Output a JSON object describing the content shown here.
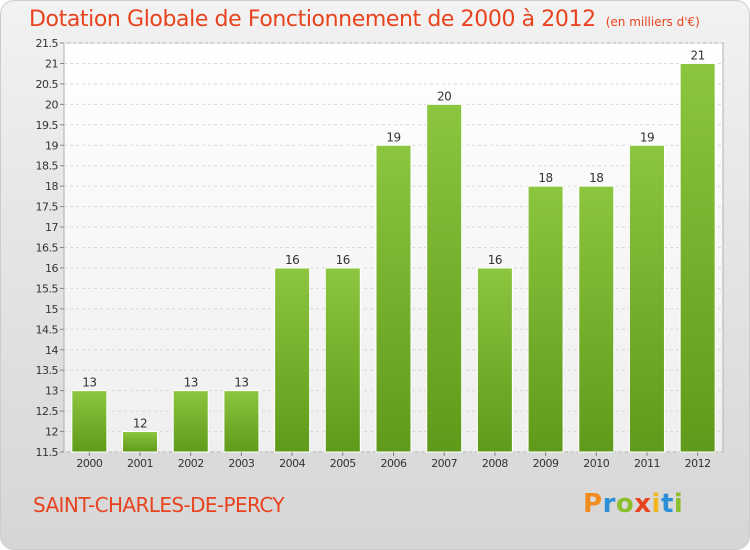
{
  "header": {
    "title": "Dotation Globale de Fonctionnement de 2000 à 2012",
    "unit": "(en milliers d'€)"
  },
  "footer": {
    "commune": "SAINT-CHARLES-DE-PERCY",
    "logo_letters": [
      "P",
      "r",
      "o",
      "x",
      "i",
      "t",
      "i"
    ],
    "logo_colors": [
      "#f28c1e",
      "#2d8fd5",
      "#8cbf2e",
      "#e8431f",
      "#f2b61e",
      "#2d8fd5",
      "#8cbf2e"
    ]
  },
  "chart_data": {
    "type": "bar",
    "categories": [
      "2000",
      "2001",
      "2002",
      "2003",
      "2004",
      "2005",
      "2006",
      "2007",
      "2008",
      "2009",
      "2010",
      "2011",
      "2012"
    ],
    "values": [
      13,
      12,
      13,
      13,
      16,
      16,
      19,
      20,
      16,
      18,
      18,
      19,
      21
    ],
    "value_labels": [
      "13",
      "12",
      "13",
      "13",
      "16",
      "16",
      "19",
      "20",
      "16",
      "18",
      "18",
      "19",
      "21"
    ],
    "ylim": [
      11.5,
      21.5
    ],
    "yticks": [
      11.5,
      12,
      12.5,
      13,
      13.5,
      14,
      14.5,
      15,
      15.5,
      16,
      16.5,
      17,
      17.5,
      18,
      18.5,
      19,
      19.5,
      20,
      20.5,
      21,
      21.5
    ],
    "ytick_labels": [
      "11.5",
      "12",
      "12.5",
      "13",
      "13.5",
      "14",
      "14.5",
      "15",
      "15.5",
      "16",
      "16.5",
      "17",
      "17.5",
      "18",
      "18.5",
      "19",
      "19.5",
      "20",
      "20.5",
      "21",
      "21.5"
    ],
    "title": "Dotation Globale de Fonctionnement de 2000 à 2012",
    "xlabel": "",
    "ylabel": "",
    "grid": true,
    "bar_color": "#8cc63f",
    "bar_color_dark": "#5f9a1a"
  }
}
